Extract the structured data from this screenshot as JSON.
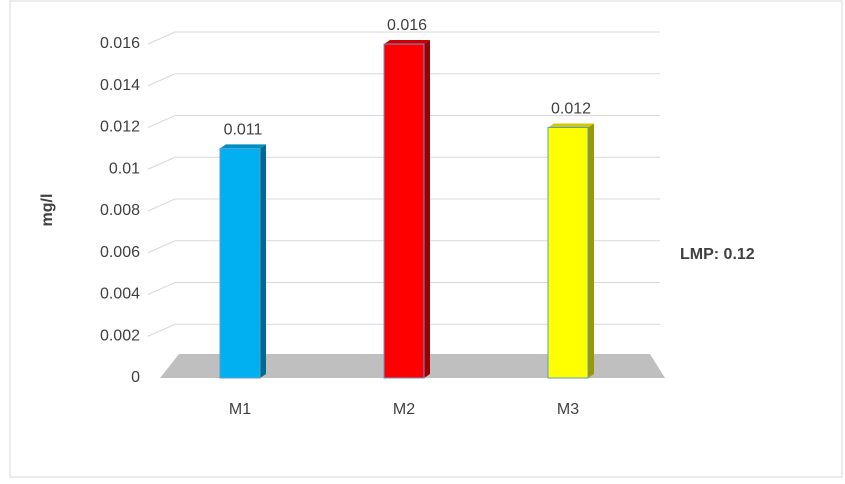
{
  "chart_data": {
    "type": "bar3d",
    "categories": [
      "M1",
      "M2",
      "M3"
    ],
    "values": [
      0.011,
      0.016,
      0.012
    ],
    "colors": [
      "#00b0f0",
      "#ff0000",
      "#ffff00"
    ],
    "y_label": "mg/l",
    "annotation": "LMP: 0.12",
    "ylim": [
      0,
      0.016
    ],
    "yticks": [
      0,
      0.002,
      0.004,
      0.006,
      0.008,
      0.01,
      0.012,
      0.014,
      0.016
    ],
    "grid": true
  }
}
